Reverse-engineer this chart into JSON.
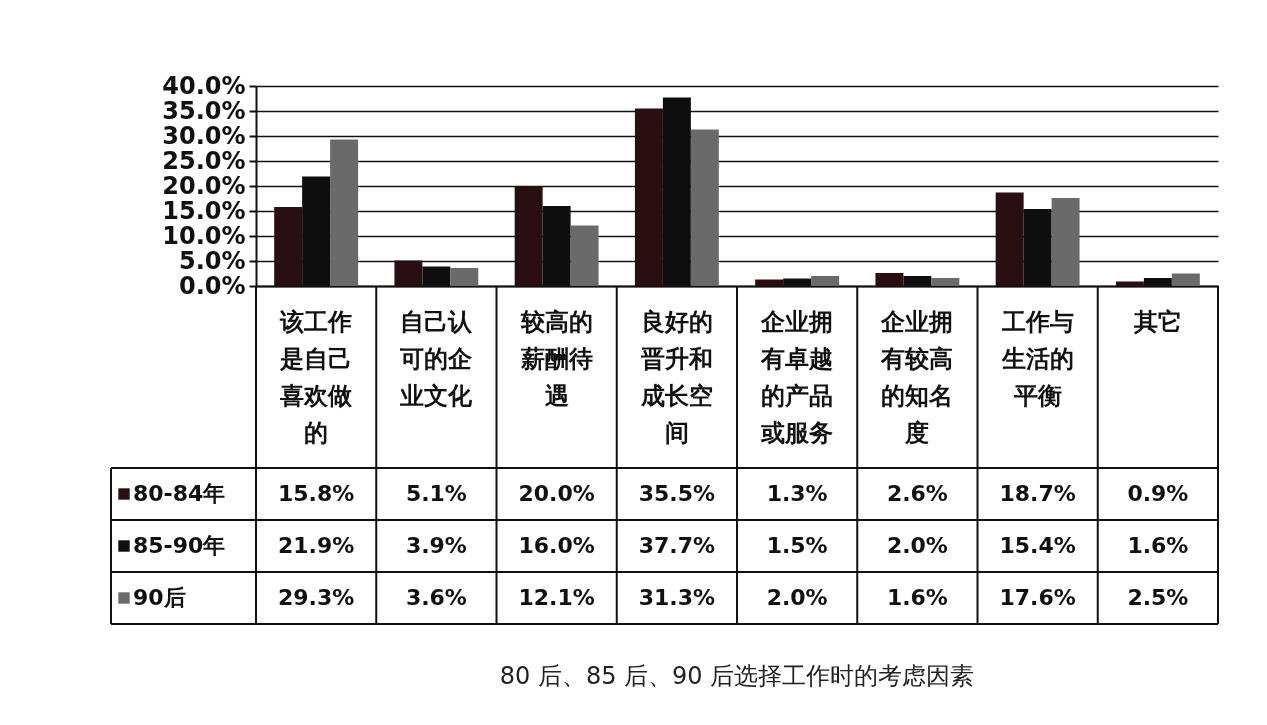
{
  "chart_data": {
    "type": "bar",
    "title": "80 后、85 后、90 后选择工作时的考虑因素",
    "categories": [
      "该工作是自己喜欢做的",
      "自己认可的企业文化",
      "较高的薪酬待遇",
      "良好的晋升和成长空间",
      "企业拥有卓越的产品或服务",
      "企业拥有较高的知名度",
      "工作与生活的平衡",
      "其它"
    ],
    "series": [
      {
        "name": "80-84年",
        "color": "#2a0f12",
        "values": [
          15.8,
          5.1,
          20.0,
          35.5,
          1.3,
          2.6,
          18.7,
          0.9
        ],
        "value_labels": [
          "15.8%",
          "5.1%",
          "20.0%",
          "35.5%",
          "1.3%",
          "2.6%",
          "18.7%",
          "0.9%"
        ]
      },
      {
        "name": "85-90年",
        "color": "#0e0e0e",
        "values": [
          21.9,
          3.9,
          16.0,
          37.7,
          1.5,
          2.0,
          15.4,
          1.6
        ],
        "value_labels": [
          "21.9%",
          "3.9%",
          "16.0%",
          "37.7%",
          "1.5%",
          "2.0%",
          "15.4%",
          "1.6%"
        ]
      },
      {
        "name": "90后",
        "color": "#6a6a6a",
        "values": [
          29.3,
          3.6,
          12.1,
          31.3,
          2.0,
          1.6,
          17.6,
          2.5
        ],
        "value_labels": [
          "29.3%",
          "3.6%",
          "12.1%",
          "31.3%",
          "2.0%",
          "1.6%",
          "17.6%",
          "2.5%"
        ]
      }
    ],
    "ylim": [
      0,
      40
    ],
    "yticks": [
      {
        "value": 0,
        "label": "0.0%"
      },
      {
        "value": 5,
        "label": "5.0%"
      },
      {
        "value": 10,
        "label": "10.0%"
      },
      {
        "value": 15,
        "label": "15.0%"
      },
      {
        "value": 20,
        "label": "20.0%"
      },
      {
        "value": 25,
        "label": "25.0%"
      },
      {
        "value": 30,
        "label": "30.0%"
      },
      {
        "value": 35,
        "label": "35.0%"
      },
      {
        "value": 40,
        "label": "40.0%"
      }
    ],
    "grid": "y",
    "legend": "bottom left"
  }
}
